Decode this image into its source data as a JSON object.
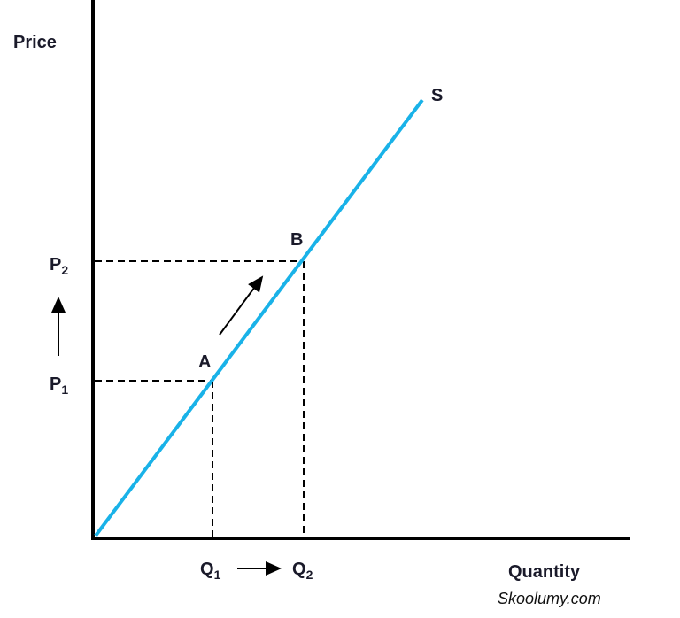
{
  "axes": {
    "y_label": "Price",
    "x_label": "Quantity"
  },
  "curve": {
    "label": "S"
  },
  "points": [
    {
      "label": "A"
    },
    {
      "label": "B"
    }
  ],
  "price_levels": [
    {
      "label": "P",
      "subscript": "1"
    },
    {
      "label": "P",
      "subscript": "2"
    }
  ],
  "quantity_levels": [
    {
      "label": "Q",
      "subscript": "1"
    },
    {
      "label": "Q",
      "subscript": "2"
    }
  ],
  "footer": {
    "source": "Skoolumy.com"
  }
}
